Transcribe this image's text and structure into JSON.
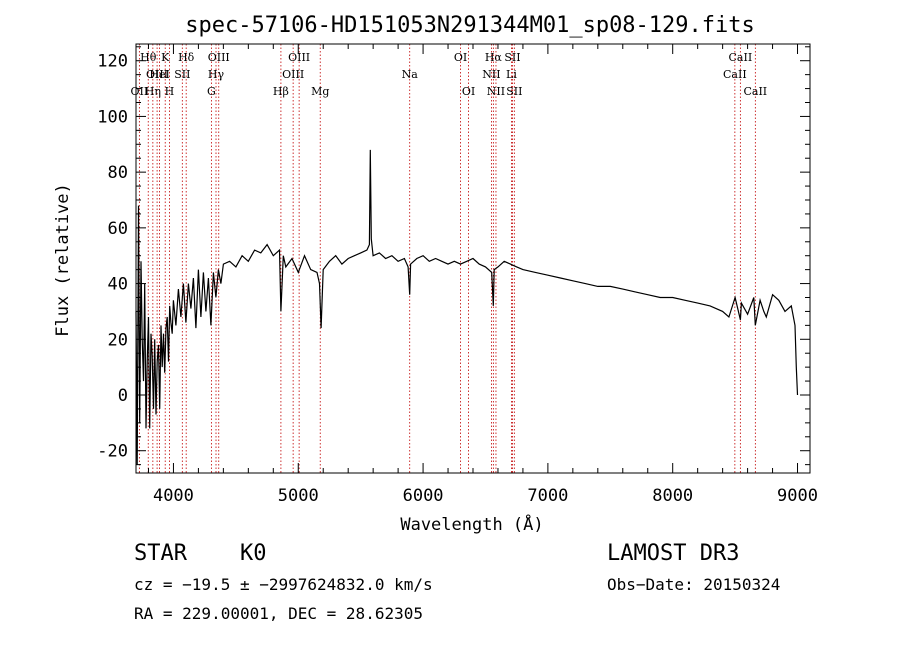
{
  "chart_data": {
    "type": "line",
    "title": "spec-57106-HD151053N291344M01_sp08-129.fits",
    "xlabel": "Wavelength (Å)",
    "ylabel": "Flux (relative)",
    "xlim": [
      3700,
      9100
    ],
    "ylim": [
      -28,
      126
    ],
    "xticks": [
      4000,
      5000,
      6000,
      7000,
      8000,
      9000
    ],
    "yticks": [
      -20,
      0,
      20,
      40,
      60,
      80,
      100,
      120
    ],
    "grid": false,
    "series": [
      {
        "name": "spectrum",
        "x": [
          3700,
          3710,
          3720,
          3730,
          3740,
          3750,
          3760,
          3770,
          3780,
          3790,
          3800,
          3810,
          3820,
          3830,
          3840,
          3850,
          3860,
          3870,
          3880,
          3890,
          3900,
          3910,
          3920,
          3930,
          3940,
          3950,
          3960,
          3970,
          3980,
          3990,
          4000,
          4020,
          4040,
          4060,
          4080,
          4100,
          4120,
          4140,
          4160,
          4180,
          4200,
          4220,
          4240,
          4260,
          4280,
          4300,
          4320,
          4340,
          4360,
          4380,
          4400,
          4450,
          4500,
          4550,
          4600,
          4650,
          4700,
          4750,
          4800,
          4850,
          4861,
          4880,
          4900,
          4950,
          5000,
          5050,
          5100,
          5150,
          5170,
          5183,
          5200,
          5250,
          5300,
          5350,
          5400,
          5450,
          5500,
          5550,
          5570,
          5577,
          5585,
          5600,
          5650,
          5700,
          5750,
          5800,
          5850,
          5880,
          5893,
          5900,
          5950,
          6000,
          6050,
          6100,
          6150,
          6200,
          6250,
          6300,
          6350,
          6400,
          6450,
          6500,
          6550,
          6563,
          6570,
          6600,
          6650,
          6700,
          6750,
          6800,
          6900,
          7000,
          7100,
          7200,
          7300,
          7400,
          7500,
          7600,
          7700,
          7800,
          7900,
          8000,
          8100,
          8200,
          8300,
          8400,
          8450,
          8500,
          8542,
          8550,
          8600,
          8650,
          8662,
          8700,
          8730,
          8750,
          8800,
          8850,
          8900,
          8950,
          8980,
          8990,
          9000
        ],
        "y": [
          30,
          -25,
          68,
          -10,
          48,
          20,
          5,
          40,
          -12,
          12,
          28,
          -12,
          22,
          14,
          -5,
          20,
          -7,
          12,
          18,
          -5,
          25,
          10,
          22,
          8,
          24,
          28,
          12,
          32,
          26,
          22,
          34,
          25,
          38,
          28,
          40,
          26,
          40,
          31,
          42,
          24,
          45,
          28,
          44,
          30,
          42,
          25,
          44,
          35,
          45,
          40,
          47,
          48,
          46,
          50,
          48,
          52,
          51,
          54,
          50,
          52,
          30,
          50,
          46,
          49,
          44,
          50,
          45,
          44,
          40,
          24,
          45,
          48,
          50,
          47,
          49,
          50,
          51,
          52,
          54,
          88,
          56,
          50,
          51,
          49,
          50,
          48,
          49,
          46,
          36,
          47,
          49,
          50,
          48,
          49,
          48,
          47,
          48,
          47,
          48,
          49,
          47,
          46,
          44,
          32,
          45,
          46,
          48,
          47,
          46,
          45,
          44,
          43,
          42,
          41,
          40,
          39,
          39,
          38,
          37,
          36,
          35,
          35,
          34,
          33,
          32,
          30,
          28,
          35,
          27,
          33,
          29,
          35,
          25,
          34,
          30,
          28,
          36,
          34,
          30,
          32,
          25,
          10,
          0
        ]
      }
    ],
    "lines": [
      {
        "name": "OII",
        "x": 3727,
        "row": 2
      },
      {
        "name": "Hθ",
        "x": 3798,
        "row": 0
      },
      {
        "name": "Hη",
        "x": 3835,
        "row": 2
      },
      {
        "name": "OIII",
        "x": 3869,
        "row": 1
      },
      {
        "name": "HeI",
        "x": 3889,
        "row": 1
      },
      {
        "name": "K",
        "x": 3934,
        "row": 0
      },
      {
        "name": "H",
        "x": 3968,
        "row": 2
      },
      {
        "name": "SII",
        "x": 4071,
        "row": 1
      },
      {
        "name": "Hδ",
        "x": 4102,
        "row": 0
      },
      {
        "name": "G",
        "x": 4304,
        "row": 2
      },
      {
        "name": "Hγ",
        "x": 4341,
        "row": 1
      },
      {
        "name": "OIII",
        "x": 4363,
        "row": 0
      },
      {
        "name": "Hβ",
        "x": 4861,
        "row": 2
      },
      {
        "name": "OIII",
        "x": 4959,
        "row": 1
      },
      {
        "name": "OIII",
        "x": 5007,
        "row": 0
      },
      {
        "name": "Mg",
        "x": 5176,
        "row": 2
      },
      {
        "name": "Na",
        "x": 5893,
        "row": 1
      },
      {
        "name": "OI",
        "x": 6300,
        "row": 0
      },
      {
        "name": "OI",
        "x": 6364,
        "row": 2
      },
      {
        "name": "NII",
        "x": 6548,
        "row": 1
      },
      {
        "name": "Hα",
        "x": 6563,
        "row": 0
      },
      {
        "name": "NII",
        "x": 6584,
        "row": 2
      },
      {
        "name": "SII",
        "x": 6716,
        "row": 0
      },
      {
        "name": "Li",
        "x": 6708,
        "row": 1
      },
      {
        "name": "SII",
        "x": 6731,
        "row": 2
      },
      {
        "name": "CaII",
        "x": 8498,
        "row": 1
      },
      {
        "name": "CaII",
        "x": 8542,
        "row": 0
      },
      {
        "name": "CaII",
        "x": 8662,
        "row": 2
      }
    ]
  },
  "info": {
    "object_class": "STAR",
    "subclass": "K0",
    "survey": "LAMOST DR3",
    "cz_line": "cz = −19.5 ± −2997624832.0 km/s",
    "obs_date_line": "Obs−Date: 20150324",
    "radec_line": "RA = 229.00001, DEC =  28.62305"
  },
  "colors": {
    "spectrum": "#000000",
    "line_markers": "#c00000",
    "axes": "#000000"
  }
}
